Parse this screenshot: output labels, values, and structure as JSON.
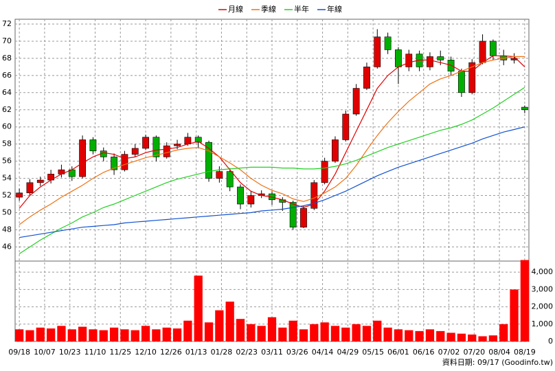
{
  "chart_data": [
    {
      "type": "candlestick",
      "open": [
        51.8,
        52.3,
        53.5,
        53.8,
        54.5,
        55.0,
        54.2,
        58.5,
        57.2,
        56.5,
        55.0,
        56.8,
        57.5,
        58.8,
        56.5,
        57.8,
        58.0,
        58.8,
        58.2,
        54.0,
        54.8,
        53.0,
        51.0,
        52.0,
        52.2,
        51.5,
        51.2,
        48.3,
        50.5,
        53.5,
        56.0,
        58.5,
        61.5,
        64.5,
        67.0,
        70.5,
        69.0,
        67.0,
        68.5,
        67.0,
        68.2,
        67.8,
        66.5,
        64.0,
        67.5,
        70.0,
        68.3,
        67.8,
        62.3
      ],
      "high": [
        52.8,
        53.9,
        54.2,
        55.0,
        55.6,
        55.4,
        59.0,
        58.8,
        57.6,
        56.9,
        57.2,
        58.0,
        59.1,
        59.0,
        58.2,
        58.5,
        59.3,
        59.0,
        58.4,
        55.4,
        55.2,
        53.3,
        52.5,
        52.6,
        52.5,
        51.8,
        51.4,
        50.8,
        53.8,
        56.4,
        58.9,
        61.9,
        65.0,
        67.5,
        71.4,
        71.0,
        69.3,
        69.0,
        68.9,
        68.7,
        68.9,
        68.2,
        66.8,
        67.9,
        70.8,
        70.2,
        69.0,
        68.6,
        62.5
      ],
      "low": [
        51.4,
        52.0,
        53.1,
        53.4,
        54.1,
        53.7,
        54.0,
        56.8,
        56.0,
        54.4,
        54.8,
        56.5,
        57.3,
        56.0,
        56.3,
        57.4,
        57.8,
        57.5,
        53.6,
        53.5,
        52.5,
        50.4,
        50.6,
        51.7,
        50.9,
        50.2,
        48.0,
        48.2,
        50.3,
        53.3,
        55.8,
        58.3,
        61.3,
        64.3,
        66.8,
        68.5,
        65.0,
        66.5,
        66.5,
        66.6,
        67.2,
        66.0,
        63.5,
        63.8,
        67.3,
        67.8,
        67.2,
        67.4,
        61.6
      ],
      "close": [
        52.3,
        53.5,
        53.8,
        54.5,
        55.0,
        54.2,
        58.5,
        57.2,
        56.5,
        55.0,
        56.8,
        57.5,
        58.8,
        56.5,
        57.8,
        58.0,
        58.8,
        58.2,
        54.0,
        54.8,
        53.0,
        51.0,
        52.0,
        52.2,
        51.5,
        51.2,
        48.3,
        50.5,
        53.5,
        56.0,
        58.5,
        61.5,
        64.5,
        67.0,
        70.5,
        69.0,
        67.0,
        68.5,
        67.0,
        68.2,
        67.8,
        66.5,
        64.0,
        67.5,
        70.0,
        68.3,
        67.8,
        68.0,
        62.0
      ],
      "up_color": "#e00000",
      "down_color": "#00b000",
      "series": [
        {
          "name": "月線",
          "color": "#e00000",
          "values": [
            50.5,
            52,
            53,
            53.8,
            54.5,
            55,
            55.8,
            56.5,
            57,
            56.8,
            56.3,
            56.5,
            57,
            57.3,
            57.4,
            57.6,
            58,
            58.3,
            57.5,
            56.5,
            55,
            53.5,
            52.5,
            52,
            51.8,
            51.5,
            51,
            50.6,
            51,
            52.5,
            54.5,
            57,
            59.5,
            62,
            64.5,
            66,
            67,
            67.5,
            67.8,
            67.8,
            67.5,
            67.2,
            66.5,
            66.5,
            67.5,
            68.3,
            68.3,
            68.2,
            67
          ]
        },
        {
          "name": "季線",
          "color": "#f07010",
          "values": [
            48.6,
            49.5,
            50.3,
            51,
            51.8,
            52.5,
            53.2,
            54,
            54.7,
            55.2,
            55.6,
            56,
            56.4,
            56.7,
            57,
            57.3,
            57.5,
            57.6,
            57.2,
            56.5,
            55.8,
            55,
            54,
            53.2,
            52.6,
            52.2,
            51.6,
            51.3,
            51.7,
            52.3,
            53,
            54,
            55.5,
            57.3,
            59,
            60.5,
            61.8,
            63,
            64,
            65,
            65.6,
            66,
            66.5,
            67,
            67.5,
            67.8,
            68,
            68.2,
            68.2
          ]
        },
        {
          "name": "半年",
          "color": "#20d020",
          "values": [
            45.2,
            46,
            46.8,
            47.5,
            48.2,
            48.8,
            49.5,
            50,
            50.6,
            51,
            51.5,
            52,
            52.5,
            53,
            53.5,
            53.9,
            54.2,
            54.5,
            54.8,
            55,
            55.1,
            55.2,
            55.3,
            55.3,
            55.3,
            55.2,
            55.2,
            55.1,
            55.1,
            55.2,
            55.4,
            55.7,
            56.1,
            56.6,
            57.1,
            57.6,
            58,
            58.4,
            58.8,
            59.2,
            59.6,
            59.9,
            60.3,
            60.8,
            61.5,
            62.2,
            63,
            63.8,
            64.6
          ]
        },
        {
          "name": "年線",
          "color": "#1050d0",
          "values": [
            47.1,
            47.3,
            47.5,
            47.7,
            47.9,
            48.1,
            48.3,
            48.4,
            48.5,
            48.6,
            48.8,
            48.9,
            49,
            49.1,
            49.2,
            49.3,
            49.4,
            49.5,
            49.6,
            49.7,
            49.8,
            49.9,
            50,
            50.2,
            50.3,
            50.4,
            50.6,
            50.8,
            51.1,
            51.5,
            52,
            52.5,
            53.1,
            53.7,
            54.3,
            54.8,
            55.3,
            55.7,
            56.1,
            56.5,
            56.9,
            57.3,
            57.7,
            58.1,
            58.6,
            59,
            59.4,
            59.7,
            60
          ]
        }
      ],
      "ylim": [
        44.35,
        72.56
      ],
      "yticks": [
        46,
        48,
        50,
        52,
        54,
        56,
        58,
        60,
        62,
        64,
        66,
        68,
        70,
        72
      ],
      "xlim": [
        -0.4,
        48.4
      ],
      "grid": true,
      "legend": "top"
    },
    {
      "type": "bar",
      "values": [
        700,
        650,
        800,
        750,
        900,
        700,
        850,
        700,
        650,
        800,
        700,
        650,
        900,
        700,
        800,
        750,
        1200,
        3800,
        1100,
        1800,
        2300,
        1300,
        1000,
        900,
        1400,
        800,
        1200,
        700,
        1000,
        1100,
        900,
        800,
        1000,
        900,
        1200,
        800,
        700,
        650,
        600,
        700,
        600,
        500,
        450,
        400,
        300,
        350,
        1000,
        3000,
        4700
      ],
      "color": "#ff0000",
      "ylim": [
        0,
        4640
      ],
      "yticks": [
        0,
        {
          "value": 1000,
          "label": "1,000"
        },
        {
          "value": 2000,
          "label": "2,000"
        },
        {
          "value": 3000,
          "label": "3,000"
        },
        {
          "value": 4000,
          "label": "4,000"
        }
      ],
      "xlim": [
        -0.4,
        48.4
      ],
      "xticks": [
        {
          "value": 0,
          "label": "09/18"
        },
        {
          "value": 2.4,
          "label": "10/07"
        },
        {
          "value": 4.8,
          "label": "10/23"
        },
        {
          "value": 7.2,
          "label": "11/10"
        },
        {
          "value": 9.6,
          "label": "11/25"
        },
        {
          "value": 12,
          "label": "12/10"
        },
        {
          "value": 14.4,
          "label": "12/26"
        },
        {
          "value": 16.8,
          "label": "01/13"
        },
        {
          "value": 19.2,
          "label": "01/28"
        },
        {
          "value": 21.6,
          "label": "02/23"
        },
        {
          "value": 24,
          "label": "03/11"
        },
        {
          "value": 26.4,
          "label": "03/26"
        },
        {
          "value": 28.8,
          "label": "04/14"
        },
        {
          "value": 31.2,
          "label": "04/29"
        },
        {
          "value": 33.6,
          "label": "05/15"
        },
        {
          "value": 36,
          "label": "06/01"
        },
        {
          "value": 38.4,
          "label": "06/16"
        },
        {
          "value": 40.8,
          "label": "07/02"
        },
        {
          "value": 43.2,
          "label": "07/20"
        },
        {
          "value": 45.6,
          "label": "08/04"
        },
        {
          "value": 48,
          "label": "08/19"
        }
      ],
      "grid": true
    }
  ],
  "footer": "資料日期: 09/17  (Goodinfo.tw)"
}
